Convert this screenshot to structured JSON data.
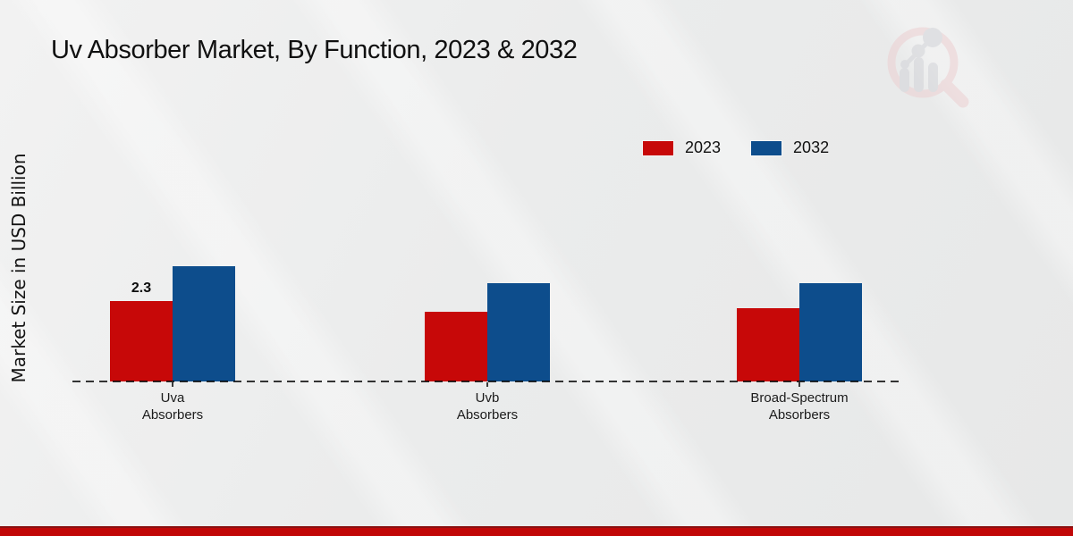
{
  "header": {
    "title": "Uv Absorber Market, By Function, 2023 & 2032"
  },
  "watermark": {
    "icon": "magnifier-bar-chart-logo",
    "ring_color": "#eccfd1",
    "bars_color": "#d2d3d8"
  },
  "chart_data": {
    "type": "bar",
    "title": "Uv Absorber Market, By Function, 2023 & 2032",
    "xlabel": "",
    "ylabel": "Market Size in USD Billion",
    "categories": [
      "Uva Absorbers",
      "Uvb Absorbers",
      "Broad-Spectrum Absorbers"
    ],
    "category_display_lines": [
      [
        "Uva",
        "Absorbers"
      ],
      [
        "Uvb",
        "Absorbers"
      ],
      [
        "Broad-Spectrum",
        "Absorbers"
      ]
    ],
    "series": [
      {
        "name": "2023",
        "color": "#c70808",
        "values": [
          2.3,
          2.0,
          2.1
        ]
      },
      {
        "name": "2032",
        "color": "#0d4d8c",
        "values": [
          3.3,
          2.8,
          2.8
        ]
      }
    ],
    "data_labels": [
      {
        "series": "2023",
        "category": "Uva Absorbers",
        "text": "2.3"
      }
    ],
    "ylim": [
      0,
      3.5
    ],
    "grid": false,
    "y_axis_ticks_visible": false,
    "baseline_style": "dashed",
    "legend_position": "top-right"
  },
  "legend": {
    "items": [
      {
        "label": "2023",
        "color": "#c70808"
      },
      {
        "label": "2032",
        "color": "#0d4d8c"
      }
    ]
  },
  "footer": {
    "bar_color": "#c10707",
    "bar_top_line_color": "#8a1010"
  }
}
